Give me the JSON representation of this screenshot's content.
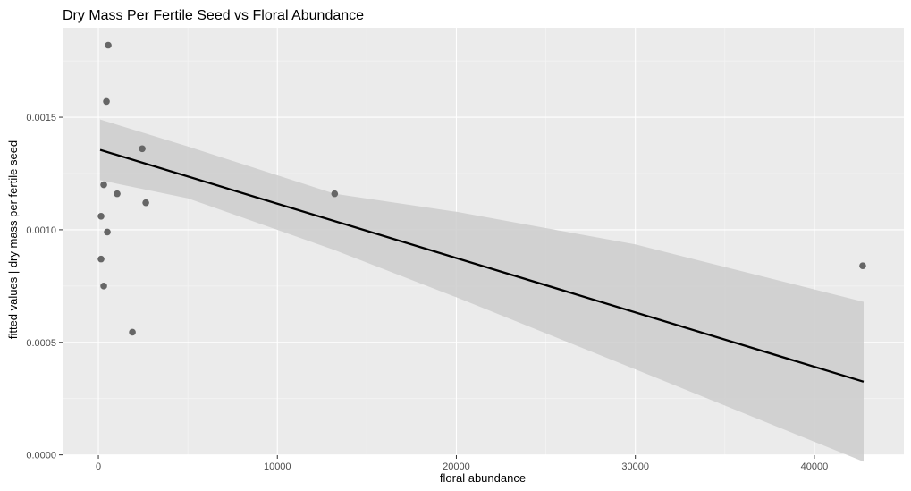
{
  "chart_data": {
    "type": "scatter",
    "title": "Dry Mass Per Fertile Seed vs Floral Abundance",
    "xlabel": "floral abundance",
    "ylabel": "fitted values | dry mass per fertile seed",
    "xlim": [
      -2000,
      45000
    ],
    "ylim": [
      -1.5e-06,
      0.0018975
    ],
    "x_ticks": [
      0,
      10000,
      20000,
      30000,
      40000
    ],
    "x_tick_labels": [
      "0",
      "10000",
      "20000",
      "30000",
      "40000"
    ],
    "y_ticks": [
      0.0,
      0.0005,
      0.001,
      0.0015
    ],
    "y_tick_labels": [
      "0.0000",
      "0.0005",
      "0.0010",
      "0.0015"
    ],
    "grid": true,
    "points": [
      {
        "x": 550,
        "y": 0.00182
      },
      {
        "x": 450,
        "y": 0.00157
      },
      {
        "x": 2450,
        "y": 0.00136
      },
      {
        "x": 300,
        "y": 0.0012
      },
      {
        "x": 1050,
        "y": 0.00116
      },
      {
        "x": 2650,
        "y": 0.00112
      },
      {
        "x": 150,
        "y": 0.00106
      },
      {
        "x": 500,
        "y": 0.00099
      },
      {
        "x": 150,
        "y": 0.00087
      },
      {
        "x": 300,
        "y": 0.00075
      },
      {
        "x": 1900,
        "y": 0.000545
      },
      {
        "x": 13200,
        "y": 0.00116
      },
      {
        "x": 42700,
        "y": 0.00084
      }
    ],
    "fit_line": {
      "x": [
        100,
        42750
      ],
      "y": [
        0.001355,
        0.000325
      ]
    },
    "confidence_band": {
      "x": [
        100,
        5000,
        13200,
        20000,
        30000,
        42750
      ],
      "upper": [
        0.00149,
        0.00137,
        0.00116,
        0.00108,
        0.000935,
        0.00068
      ],
      "lower": [
        0.00122,
        0.00114,
        0.00091,
        0.0007,
        0.00038,
        -3e-05
      ]
    },
    "colors": {
      "panel_bg": "#ebebeb",
      "grid_major": "#ffffff",
      "grid_minor": "#f4f4f4",
      "point": "#666666",
      "band": "#cccccc",
      "fit_line": "#000000",
      "tick": "#333333"
    }
  }
}
